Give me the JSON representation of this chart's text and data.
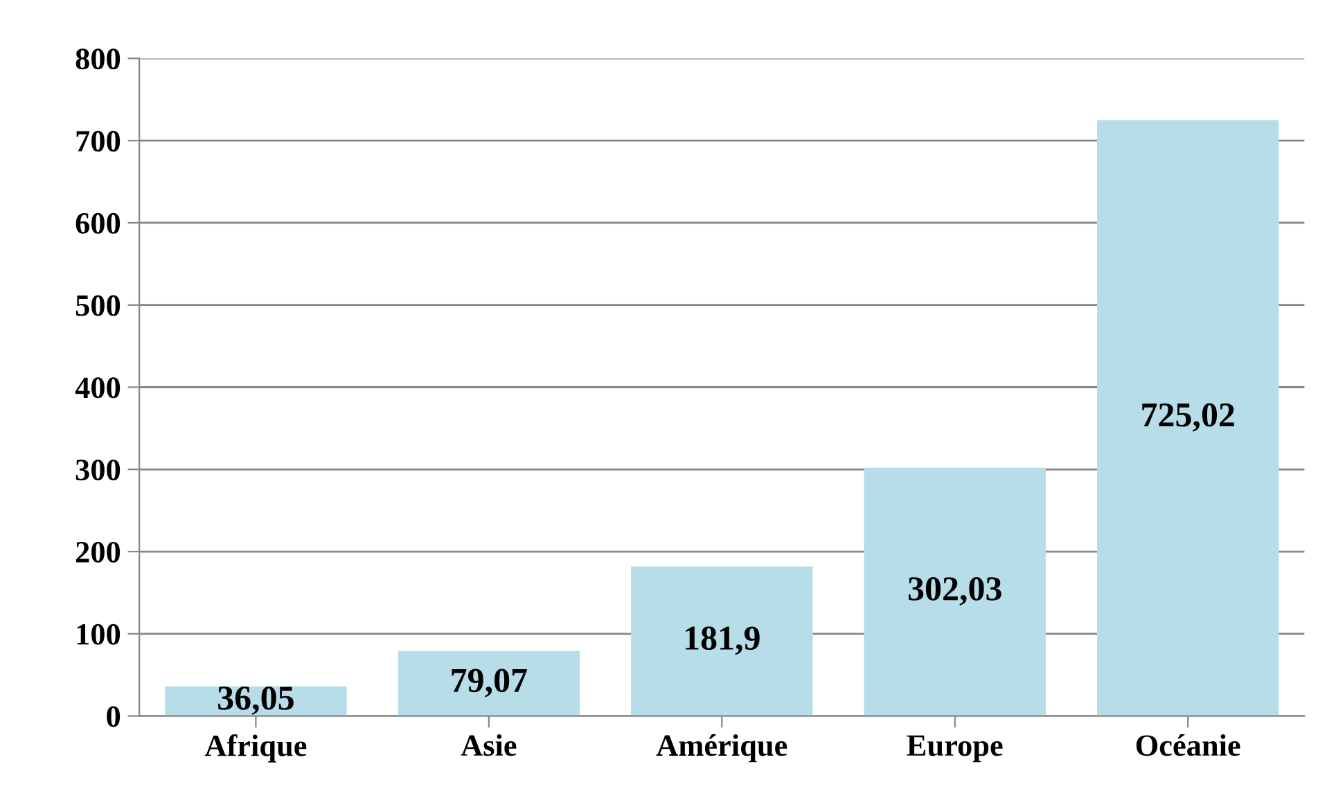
{
  "chart_data": {
    "type": "bar",
    "categories": [
      "Afrique",
      "Asie",
      "Amérique",
      "Europe",
      "Océanie"
    ],
    "values": [
      36.05,
      79.07,
      181.9,
      302.03,
      725.02
    ],
    "value_labels": [
      "36,05",
      "79,07",
      "181,9",
      "302,03",
      "725,02"
    ],
    "color": "#b7dde8",
    "ylim": [
      0,
      800
    ],
    "yticks": [
      0,
      100,
      200,
      300,
      400,
      500,
      600,
      700,
      800
    ],
    "grid": "y",
    "legend": false
  }
}
